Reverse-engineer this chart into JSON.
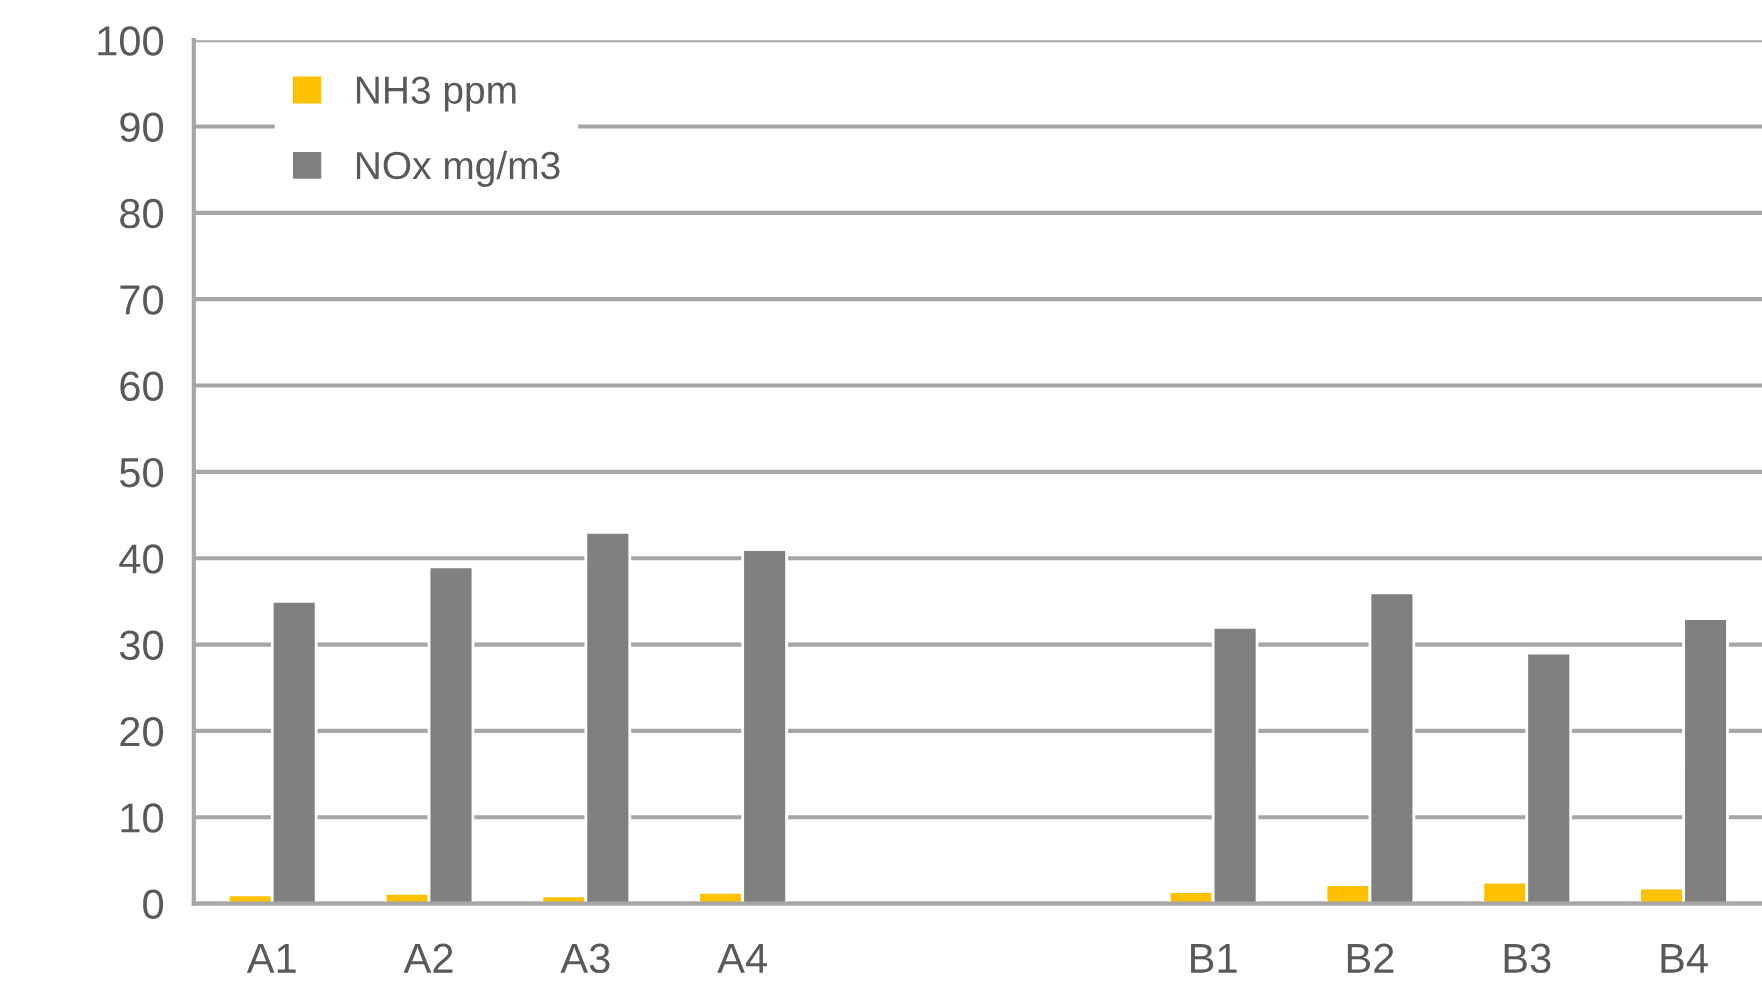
{
  "chart_data": {
    "type": "bar",
    "categories": [
      "A1",
      "A2",
      "A3",
      "A4",
      null,
      null,
      "B1",
      "B2",
      "B3",
      "B4"
    ],
    "series": [
      {
        "name": "NH3 ppm",
        "color": "#ffc000",
        "values": [
          1.0,
          1.2,
          0.9,
          1.3,
          null,
          null,
          1.4,
          2.2,
          2.5,
          1.8
        ]
      },
      {
        "name": "NOx mg/m3",
        "color": "#808080",
        "values": [
          35,
          39,
          43,
          41,
          null,
          null,
          32,
          36,
          29,
          33
        ]
      }
    ],
    "ylim": [
      0,
      100
    ],
    "yticks": [
      0,
      10,
      20,
      30,
      40,
      50,
      60,
      70,
      80,
      90,
      100
    ],
    "grid": "y",
    "legend": "top left"
  }
}
